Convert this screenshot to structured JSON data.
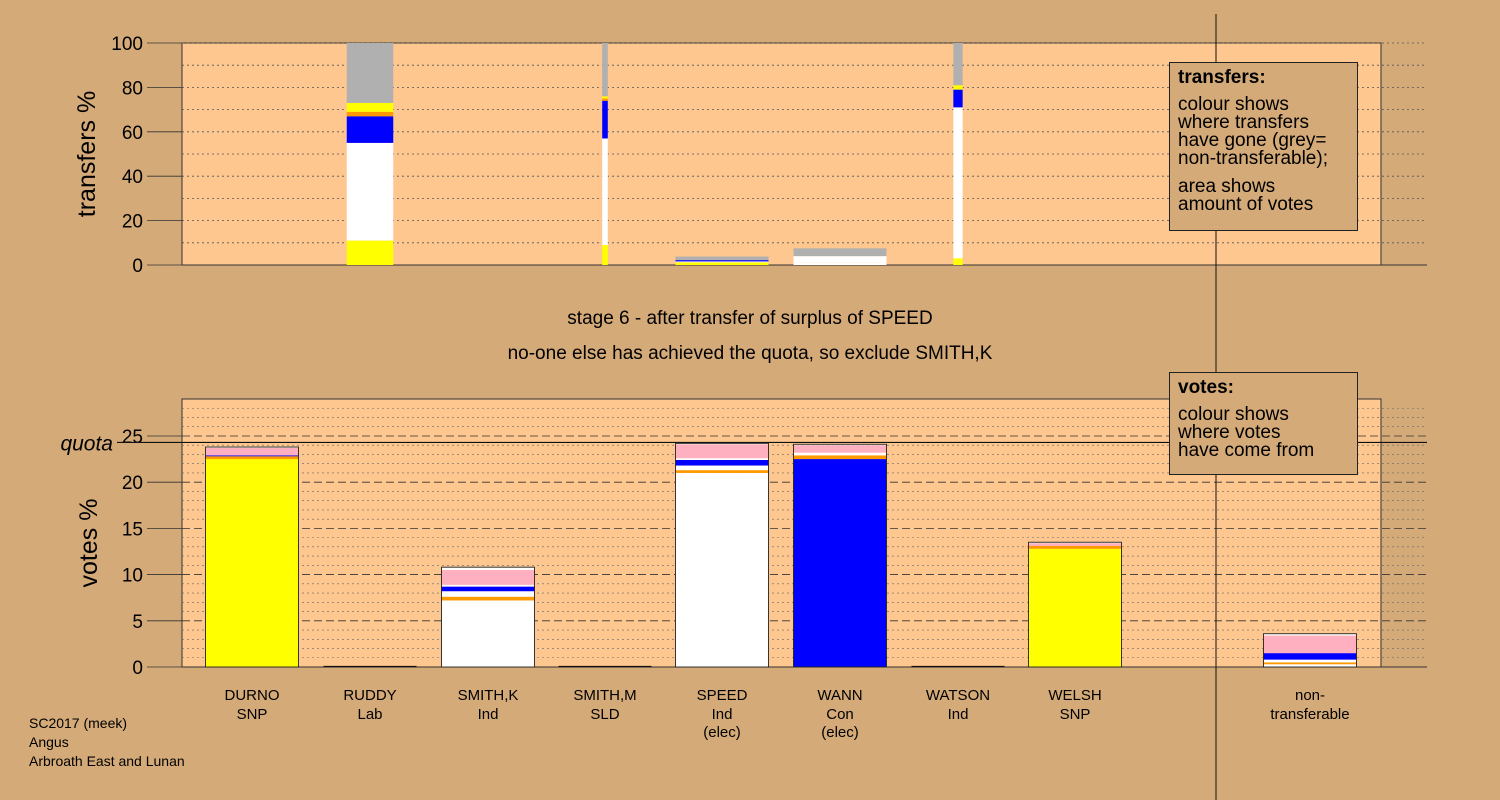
{
  "stage_line1": "stage 6 - after transfer of surplus of SPEED",
  "stage_line2": "no-one else has achieved the quota, so exclude SMITH,K",
  "transfers_legend": {
    "title": "transfers:",
    "lines1": [
      "colour shows",
      "where transfers",
      "have gone (grey=",
      "non-transferable);"
    ],
    "lines2": [
      "area shows",
      "amount of votes"
    ]
  },
  "votes_legend": {
    "title": "votes:",
    "lines": [
      "colour shows",
      "where votes",
      "have come from"
    ]
  },
  "footer": [
    "SC2017 (meek)",
    "Angus",
    "Arbroath East and Lunan"
  ],
  "colors": {
    "background": "#d4aa78",
    "plot_bg": "#fdc78f",
    "SNP": "#ffff00",
    "Con": "#0000ff",
    "Ind": "#ffffff",
    "Lab": "#ff9900",
    "other_pink": "#ffb0c0",
    "non_transferable": "#b0b0b0"
  },
  "chart_data": [
    {
      "type": "bar",
      "name": "transfers",
      "ylabel": "transfers %",
      "ylim": [
        0,
        100
      ],
      "yticks": [
        0,
        20,
        40,
        60,
        80,
        100
      ],
      "columns": [
        {
          "candidate": "RUDDY",
          "width_share": 0.5,
          "segments": [
            {
              "color": "SNP",
              "value": 11
            },
            {
              "color": "Ind",
              "value": 44
            },
            {
              "color": "Con",
              "value": 12
            },
            {
              "color": "Lab",
              "value": 2
            },
            {
              "color": "SNP",
              "value": 4
            },
            {
              "color": "non_transferable",
              "value": 27
            }
          ]
        },
        {
          "candidate": "SMITH,M",
          "width_share": 0.06,
          "segments": [
            {
              "color": "SNP",
              "value": 9
            },
            {
              "color": "Ind",
              "value": 48
            },
            {
              "color": "Con",
              "value": 17
            },
            {
              "color": "Lab",
              "value": 1
            },
            {
              "color": "SNP",
              "value": 1
            },
            {
              "color": "non_transferable",
              "value": 24
            }
          ]
        },
        {
          "candidate": "SPEED",
          "width_share": 1.0,
          "segments": [
            {
              "color": "SNP",
              "value": 1.2
            },
            {
              "color": "Ind",
              "value": 0.4
            },
            {
              "color": "Con",
              "value": 0.6
            },
            {
              "color": "non_transferable",
              "value": 1.6
            }
          ]
        },
        {
          "candidate": "WANN",
          "width_share": 1.0,
          "segments": [
            {
              "color": "Ind",
              "value": 1
            },
            {
              "color": "Ind",
              "value": 3
            },
            {
              "color": "non_transferable",
              "value": 3.5
            }
          ]
        },
        {
          "candidate": "WATSON",
          "width_share": 0.1,
          "segments": [
            {
              "color": "SNP",
              "value": 3
            },
            {
              "color": "Ind",
              "value": 68
            },
            {
              "color": "Con",
              "value": 8
            },
            {
              "color": "SNP",
              "value": 2
            },
            {
              "color": "non_transferable",
              "value": 19
            }
          ]
        }
      ]
    },
    {
      "type": "bar",
      "name": "votes",
      "ylabel": "votes %",
      "quota_label": "quota",
      "quota": 24.3,
      "ylim": [
        0,
        29
      ],
      "yticks": [
        0,
        5,
        10,
        15,
        20,
        25
      ],
      "categories": [
        {
          "name": "DURNO",
          "party": "SNP",
          "extra": ""
        },
        {
          "name": "RUDDY",
          "party": "Lab",
          "extra": ""
        },
        {
          "name": "SMITH,K",
          "party": "Ind",
          "extra": ""
        },
        {
          "name": "SMITH,M",
          "party": "SLD",
          "extra": ""
        },
        {
          "name": "SPEED",
          "party": "Ind",
          "extra": "(elec)"
        },
        {
          "name": "WANN",
          "party": "Con",
          "extra": "(elec)"
        },
        {
          "name": "WATSON",
          "party": "Ind",
          "extra": ""
        },
        {
          "name": "WELSH",
          "party": "SNP",
          "extra": ""
        }
      ],
      "nontransferable_label": "non-\ntransferable",
      "stacks": [
        [
          {
            "color": "SNP",
            "value": 22.5
          },
          {
            "color": "Lab",
            "value": 0.3
          },
          {
            "color": "Con",
            "value": 0.1
          },
          {
            "color": "other_pink",
            "value": 0.8
          },
          {
            "color": "Ind",
            "value": 0.1
          }
        ],
        [],
        [
          {
            "color": "Ind",
            "value": 7.2
          },
          {
            "color": "Lab",
            "value": 0.4
          },
          {
            "color": "Ind",
            "value": 0.6
          },
          {
            "color": "Con",
            "value": 0.5
          },
          {
            "color": "Ind",
            "value": 0.2
          },
          {
            "color": "other_pink",
            "value": 1.6
          },
          {
            "color": "Ind",
            "value": 0.3
          }
        ],
        [],
        [
          {
            "color": "Ind",
            "value": 21
          },
          {
            "color": "Lab",
            "value": 0.3
          },
          {
            "color": "Ind",
            "value": 0.5
          },
          {
            "color": "Con",
            "value": 0.6
          },
          {
            "color": "Ind",
            "value": 0.2
          },
          {
            "color": "other_pink",
            "value": 1.5
          },
          {
            "color": "Ind",
            "value": 0.1
          }
        ],
        [
          {
            "color": "Con",
            "value": 22.5
          },
          {
            "color": "Lab",
            "value": 0.4
          },
          {
            "color": "Ind",
            "value": 0.3
          },
          {
            "color": "other_pink",
            "value": 0.8
          },
          {
            "color": "Ind",
            "value": 0.1
          }
        ],
        [],
        [
          {
            "color": "SNP",
            "value": 12.8
          },
          {
            "color": "Lab",
            "value": 0.3
          },
          {
            "color": "other_pink",
            "value": 0.3
          },
          {
            "color": "Ind",
            "value": 0.1
          }
        ],
        [
          {
            "color": "Ind",
            "value": 0.3
          },
          {
            "color": "Lab",
            "value": 0.2
          },
          {
            "color": "Ind",
            "value": 0.3
          },
          {
            "color": "Con",
            "value": 0.7
          },
          {
            "color": "other_pink",
            "value": 1.9
          },
          {
            "color": "Ind",
            "value": 0.2
          }
        ]
      ]
    }
  ]
}
